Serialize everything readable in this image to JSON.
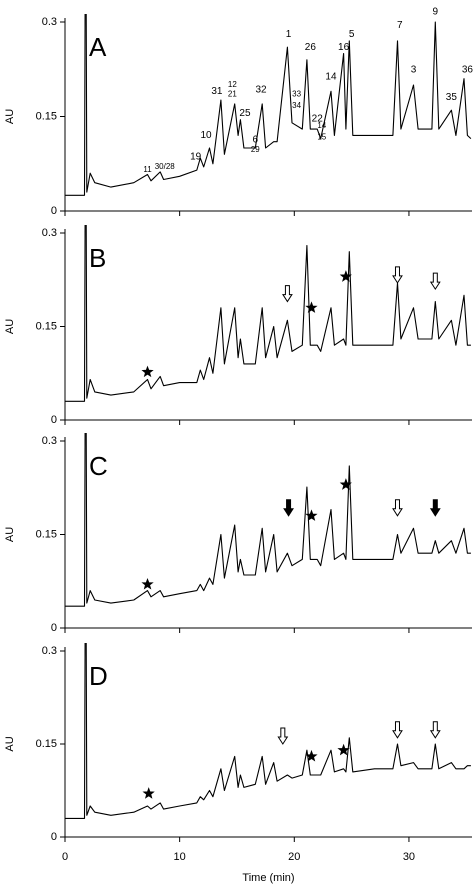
{
  "chart_data": [
    {
      "type": "line",
      "panel_label": "A",
      "ylabel": "AU",
      "color": "#000000",
      "xlim": [
        0,
        35.5
      ],
      "ylim": [
        0,
        0.3
      ],
      "xticks": [
        0,
        10,
        20,
        30
      ],
      "yticks": [
        0,
        0.15,
        0.3
      ],
      "x": [
        0,
        1.7,
        1.75,
        1.85,
        1.9,
        2.2,
        2.6,
        4,
        6,
        7.2,
        7.5,
        8.3,
        8.6,
        10,
        11.5,
        11.8,
        12.1,
        12.6,
        12.9,
        13.6,
        13.9,
        14.8,
        15.1,
        15.3,
        15.6,
        16.6,
        17.2,
        17.5,
        18.2,
        18.5,
        19.4,
        19.8,
        20.7,
        21.1,
        21.4,
        22.0,
        22.3,
        23.2,
        23.5,
        24.3,
        24.5,
        24.8,
        25.1,
        27,
        28.6,
        29.0,
        29.3,
        30.4,
        30.8,
        32.0,
        32.3,
        32.6,
        33.7,
        34.1,
        34.8,
        35.1,
        35.4
      ],
      "values": [
        0.025,
        0.025,
        0.32,
        0.32,
        0.03,
        0.06,
        0.045,
        0.038,
        0.045,
        0.058,
        0.048,
        0.062,
        0.05,
        0.055,
        0.065,
        0.084,
        0.07,
        0.1,
        0.075,
        0.176,
        0.09,
        0.17,
        0.12,
        0.145,
        0.1,
        0.1,
        0.17,
        0.1,
        0.11,
        0.11,
        0.26,
        0.14,
        0.13,
        0.24,
        0.13,
        0.13,
        0.115,
        0.19,
        0.12,
        0.25,
        0.13,
        0.27,
        0.12,
        0.12,
        0.12,
        0.27,
        0.13,
        0.2,
        0.13,
        0.13,
        0.3,
        0.13,
        0.16,
        0.12,
        0.21,
        0.12,
        0.115
      ],
      "annotations": [
        {
          "text": "11",
          "x": 7.2,
          "y": 0.065
        },
        {
          "text": "30/28",
          "x": 8.7,
          "y": 0.07
        },
        {
          "text": "19",
          "x": 11.4,
          "y": 0.086
        },
        {
          "text": "10",
          "x": 12.3,
          "y": 0.12
        },
        {
          "text": "31",
          "x": 13.25,
          "y": 0.19
        },
        {
          "text": "12",
          "x": 14.6,
          "y": 0.2
        },
        {
          "text": "21",
          "x": 14.6,
          "y": 0.185
        },
        {
          "text": "25",
          "x": 15.7,
          "y": 0.155
        },
        {
          "text": "6",
          "x": 16.6,
          "y": 0.113
        },
        {
          "text": "29",
          "x": 16.6,
          "y": 0.097
        },
        {
          "text": "32",
          "x": 17.1,
          "y": 0.192
        },
        {
          "text": "1",
          "x": 19.5,
          "y": 0.28
        },
        {
          "text": "33",
          "x": 20.2,
          "y": 0.185
        },
        {
          "text": "34",
          "x": 20.2,
          "y": 0.167
        },
        {
          "text": "26",
          "x": 21.4,
          "y": 0.26
        },
        {
          "text": "22",
          "x": 22.0,
          "y": 0.146
        },
        {
          "text": "14",
          "x": 22.4,
          "y": 0.135
        },
        {
          "text": "15",
          "x": 22.4,
          "y": 0.117
        },
        {
          "text": "14",
          "x": 23.2,
          "y": 0.213
        },
        {
          "text": "16",
          "x": 24.3,
          "y": 0.26
        },
        {
          "text": "5",
          "x": 25.0,
          "y": 0.28
        },
        {
          "text": "7",
          "x": 29.2,
          "y": 0.295
        },
        {
          "text": "3",
          "x": 30.4,
          "y": 0.224
        },
        {
          "text": "9",
          "x": 32.3,
          "y": 0.316
        },
        {
          "text": "35",
          "x": 33.7,
          "y": 0.18
        },
        {
          "text": "36",
          "x": 35.1,
          "y": 0.224
        }
      ]
    },
    {
      "type": "line",
      "panel_label": "B",
      "ylabel": "AU",
      "color": "#000000",
      "xlim": [
        0,
        35.5
      ],
      "ylim": [
        0,
        0.3
      ],
      "xticks": [
        0,
        10,
        20,
        30
      ],
      "yticks": [
        0,
        0.15,
        0.3
      ],
      "x": [
        0,
        1.7,
        1.75,
        1.85,
        1.9,
        2.2,
        2.6,
        4,
        6,
        7.2,
        7.5,
        8.3,
        8.6,
        10,
        11.5,
        11.8,
        12.1,
        12.6,
        12.9,
        13.6,
        13.9,
        14.8,
        15.1,
        15.3,
        15.6,
        16.6,
        17.2,
        17.5,
        18.2,
        18.5,
        19.4,
        19.8,
        20.7,
        21.1,
        21.4,
        22.0,
        22.3,
        23.2,
        23.5,
        24.3,
        24.5,
        24.8,
        25.1,
        27,
        28.6,
        29.0,
        29.3,
        30.4,
        30.8,
        32.0,
        32.3,
        32.6,
        33.7,
        34.1,
        34.8,
        35.1,
        35.4
      ],
      "values": [
        0.03,
        0.03,
        0.32,
        0.32,
        0.035,
        0.065,
        0.045,
        0.04,
        0.045,
        0.065,
        0.05,
        0.07,
        0.055,
        0.06,
        0.06,
        0.08,
        0.065,
        0.1,
        0.075,
        0.18,
        0.09,
        0.18,
        0.1,
        0.13,
        0.09,
        0.09,
        0.18,
        0.1,
        0.15,
        0.1,
        0.16,
        0.11,
        0.12,
        0.28,
        0.12,
        0.12,
        0.11,
        0.18,
        0.12,
        0.13,
        0.12,
        0.27,
        0.12,
        0.12,
        0.12,
        0.22,
        0.13,
        0.18,
        0.13,
        0.13,
        0.19,
        0.13,
        0.16,
        0.12,
        0.2,
        0.12,
        0.12
      ],
      "markers": [
        {
          "kind": "star",
          "x": 7.2,
          "y": 0.077
        },
        {
          "kind": "open-arrow",
          "x": 19.4,
          "y": 0.19
        },
        {
          "kind": "star",
          "x": 21.5,
          "y": 0.18
        },
        {
          "kind": "star",
          "x": 24.5,
          "y": 0.23
        },
        {
          "kind": "open-arrow",
          "x": 29.0,
          "y": 0.22
        },
        {
          "kind": "open-arrow",
          "x": 32.3,
          "y": 0.21
        }
      ]
    },
    {
      "type": "line",
      "panel_label": "C",
      "ylabel": "AU",
      "color": "#000000",
      "xlim": [
        0,
        35.5
      ],
      "ylim": [
        0,
        0.3
      ],
      "xticks": [
        0,
        10,
        20,
        30
      ],
      "yticks": [
        0,
        0.15,
        0.3
      ],
      "x": [
        0,
        1.7,
        1.75,
        1.85,
        1.9,
        2.2,
        2.6,
        4,
        6,
        7.2,
        7.5,
        8.3,
        8.6,
        10,
        11.5,
        11.8,
        12.1,
        12.6,
        12.9,
        13.6,
        13.9,
        14.8,
        15.1,
        15.3,
        15.6,
        16.6,
        17.2,
        17.5,
        18.2,
        18.5,
        19.4,
        19.8,
        20.7,
        21.1,
        21.4,
        22.0,
        22.3,
        23.2,
        23.5,
        24.3,
        24.5,
        24.8,
        25.1,
        27,
        28.6,
        29.0,
        29.3,
        30.4,
        30.8,
        32.0,
        32.3,
        32.6,
        33.7,
        34.1,
        34.8,
        35.1,
        35.4
      ],
      "values": [
        0.035,
        0.035,
        0.32,
        0.32,
        0.04,
        0.06,
        0.045,
        0.04,
        0.045,
        0.06,
        0.05,
        0.06,
        0.05,
        0.055,
        0.06,
        0.07,
        0.06,
        0.08,
        0.07,
        0.15,
        0.08,
        0.165,
        0.09,
        0.11,
        0.085,
        0.085,
        0.16,
        0.09,
        0.15,
        0.09,
        0.12,
        0.1,
        0.11,
        0.226,
        0.11,
        0.11,
        0.1,
        0.19,
        0.11,
        0.12,
        0.11,
        0.26,
        0.11,
        0.11,
        0.11,
        0.15,
        0.12,
        0.16,
        0.12,
        0.12,
        0.14,
        0.12,
        0.14,
        0.12,
        0.16,
        0.12,
        0.12
      ],
      "markers": [
        {
          "kind": "star",
          "x": 7.2,
          "y": 0.07
        },
        {
          "kind": "filled-arrow",
          "x": 19.5,
          "y": 0.18
        },
        {
          "kind": "star",
          "x": 21.5,
          "y": 0.18
        },
        {
          "kind": "star",
          "x": 24.5,
          "y": 0.23
        },
        {
          "kind": "open-arrow",
          "x": 29.0,
          "y": 0.18
        },
        {
          "kind": "filled-arrow",
          "x": 32.3,
          "y": 0.18
        }
      ]
    },
    {
      "type": "line",
      "panel_label": "D",
      "ylabel": "AU",
      "xlabel": "Time (min)",
      "color": "#000000",
      "xlim": [
        0,
        35.5
      ],
      "ylim": [
        0,
        0.3
      ],
      "xticks": [
        0,
        10,
        20,
        30
      ],
      "yticks": [
        0,
        0.15,
        0.3
      ],
      "x": [
        0,
        1.7,
        1.75,
        1.85,
        1.9,
        2.2,
        2.6,
        4,
        6,
        7.2,
        7.5,
        8.3,
        8.6,
        10,
        11.5,
        11.8,
        12.1,
        12.6,
        12.9,
        13.6,
        13.9,
        14.8,
        15.1,
        15.3,
        15.6,
        16.6,
        17.2,
        17.5,
        18.2,
        18.5,
        19.4,
        19.8,
        20.7,
        21.1,
        21.4,
        22.0,
        22.3,
        23.2,
        23.5,
        24.3,
        24.5,
        24.8,
        25.1,
        27,
        28.6,
        29.0,
        29.3,
        30.4,
        30.8,
        32.0,
        32.3,
        32.6,
        33.7,
        34.1,
        34.8,
        35.1,
        35.4
      ],
      "values": [
        0.03,
        0.03,
        0.32,
        0.32,
        0.035,
        0.05,
        0.04,
        0.035,
        0.04,
        0.05,
        0.045,
        0.055,
        0.045,
        0.05,
        0.055,
        0.065,
        0.06,
        0.075,
        0.065,
        0.11,
        0.075,
        0.13,
        0.08,
        0.1,
        0.08,
        0.085,
        0.13,
        0.085,
        0.12,
        0.09,
        0.1,
        0.095,
        0.1,
        0.14,
        0.1,
        0.1,
        0.1,
        0.14,
        0.105,
        0.11,
        0.105,
        0.16,
        0.105,
        0.11,
        0.11,
        0.15,
        0.115,
        0.12,
        0.11,
        0.11,
        0.15,
        0.11,
        0.12,
        0.11,
        0.11,
        0.115,
        0.115
      ],
      "markers": [
        {
          "kind": "star",
          "x": 7.3,
          "y": 0.07
        },
        {
          "kind": "open-arrow",
          "x": 19.0,
          "y": 0.15
        },
        {
          "kind": "star",
          "x": 21.5,
          "y": 0.13
        },
        {
          "kind": "star",
          "x": 24.3,
          "y": 0.14
        },
        {
          "kind": "open-arrow",
          "x": 29.0,
          "y": 0.16
        },
        {
          "kind": "open-arrow",
          "x": 32.3,
          "y": 0.16
        }
      ]
    }
  ]
}
